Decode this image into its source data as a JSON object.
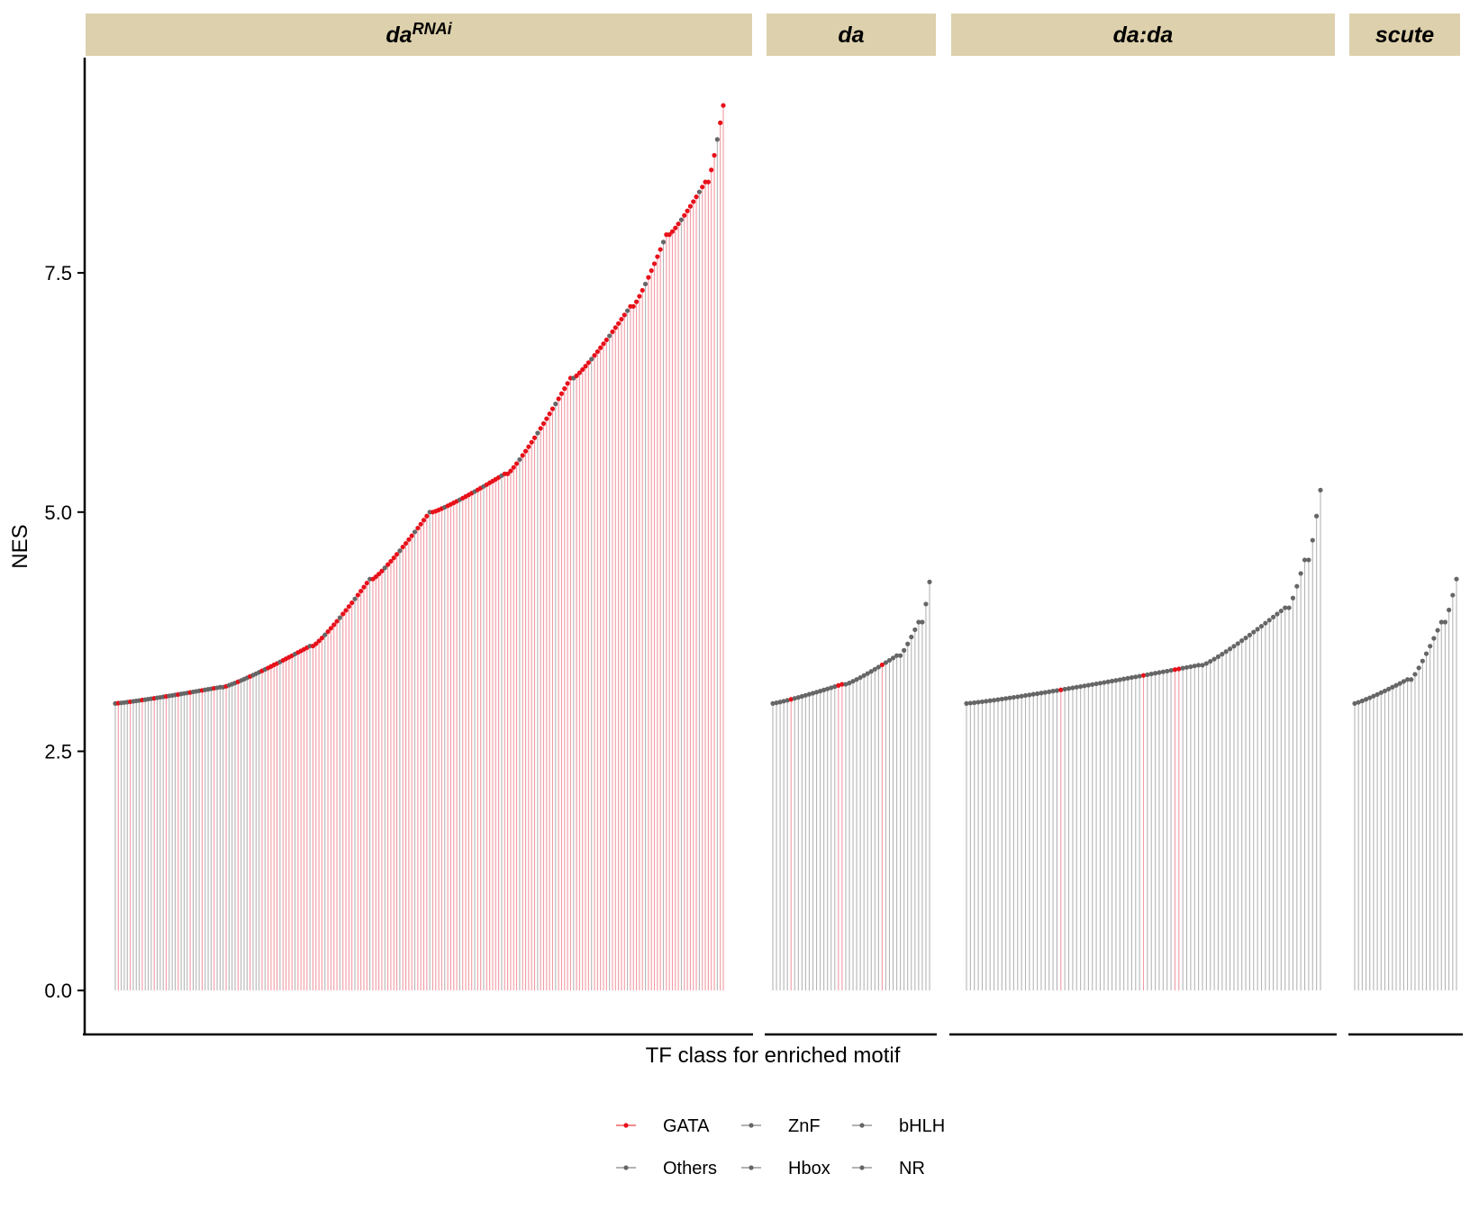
{
  "chart_data": {
    "type": "lollipop",
    "ylabel": "NES",
    "xlabel": "TF class for enriched motif",
    "ylim": [
      -0.45,
      9.75
    ],
    "yticks": [
      0.0,
      2.5,
      5.0,
      7.5
    ],
    "ytick_labels": [
      "0.0",
      "2.5",
      "5.0",
      "7.5"
    ],
    "grid": false,
    "legend_position": "bottom",
    "colors": {
      "GATA": "#e8101a",
      "GATA_stem": "#f19aa3",
      "other": "#666666",
      "other_stem": "#b5b5b5",
      "strip_bg": "#ddd0ac"
    },
    "legend": {
      "items": [
        {
          "label": "GATA",
          "color": "#e8101a"
        },
        {
          "label": "ZnF",
          "color": "#666666"
        },
        {
          "label": "bHLH",
          "color": "#666666"
        },
        {
          "label": "Others",
          "color": "#666666"
        },
        {
          "label": "Hbox",
          "color": "#666666"
        },
        {
          "label": "NR",
          "color": "#666666"
        }
      ]
    },
    "panels": [
      {
        "title": "da",
        "title_superscript": "RNAi",
        "gata_pattern": "dense",
        "segments": [
          [
            3.0,
            3.17,
            36
          ],
          [
            3.17,
            3.6,
            30
          ],
          [
            3.6,
            4.3,
            20
          ],
          [
            4.3,
            5.0,
            20
          ],
          [
            5.0,
            5.4,
            25
          ],
          [
            5.4,
            6.4,
            22
          ],
          [
            6.4,
            7.15,
            20
          ],
          [
            7.15,
            7.9,
            12
          ],
          [
            7.9,
            8.45,
            13
          ],
          [
            8.45,
            9.25,
            6
          ]
        ]
      },
      {
        "title": "da",
        "title_superscript": "",
        "gata_pattern": "sparse",
        "segments": [
          [
            3.0,
            3.2,
            20
          ],
          [
            3.2,
            3.5,
            15
          ],
          [
            3.5,
            3.85,
            6
          ],
          [
            3.85,
            4.27,
            3
          ]
        ]
      },
      {
        "title": "da:da",
        "title_superscript": "",
        "gata_pattern": "rare",
        "segments": [
          [
            3.0,
            3.4,
            60
          ],
          [
            3.4,
            4.0,
            22
          ],
          [
            4.0,
            4.5,
            5
          ],
          [
            4.5,
            5.23,
            4
          ]
        ]
      },
      {
        "title": "scute",
        "title_superscript": "",
        "gata_pattern": "none",
        "segments": [
          [
            3.0,
            3.25,
            15
          ],
          [
            3.25,
            3.85,
            9
          ],
          [
            3.85,
            4.3,
            4
          ]
        ]
      }
    ]
  }
}
